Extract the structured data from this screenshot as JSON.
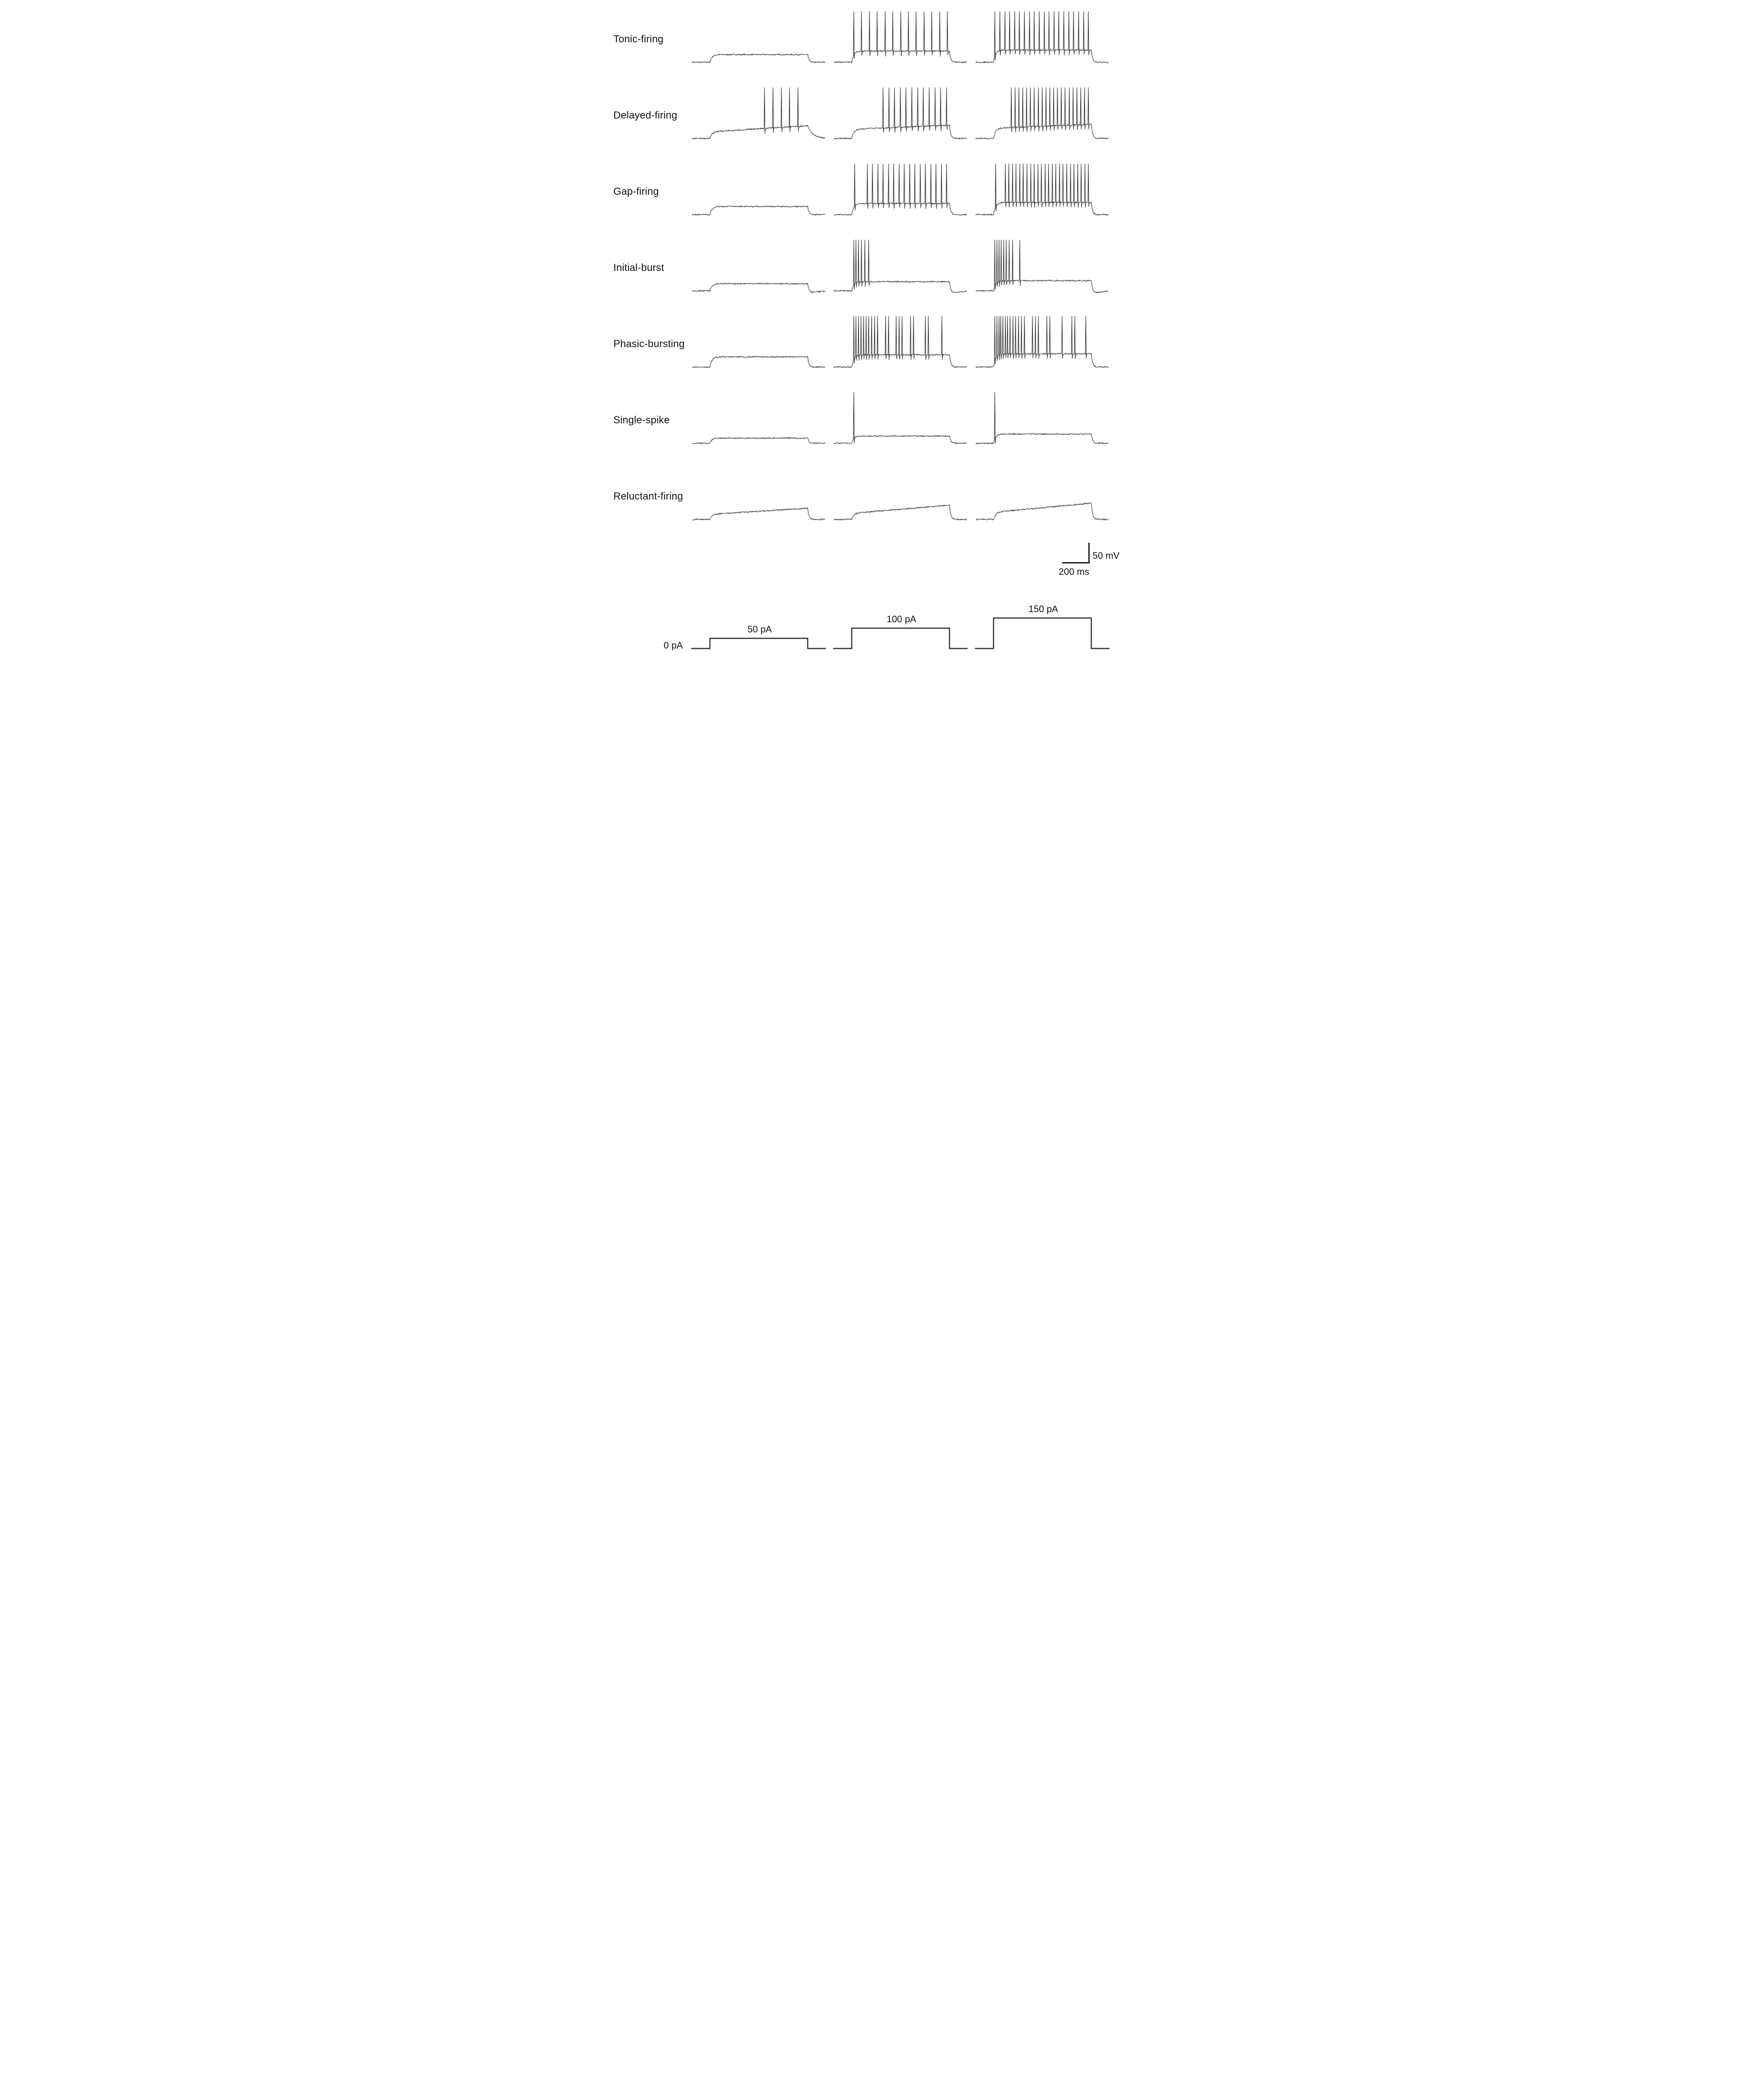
{
  "chart_data": {
    "type": "line",
    "description": "Whole-cell current-clamp voltage traces showing seven neuronal firing patterns in response to three depolarizing current steps",
    "columns": [
      {
        "label": "50 pA",
        "pA": 50
      },
      {
        "label": "100 pA",
        "pA": 100
      },
      {
        "label": "150 pA",
        "pA": 150
      }
    ],
    "baseline": {
      "label": "0 pA",
      "pA": 0
    },
    "scalebar": {
      "voltage_label": "50 mV",
      "time_label": "200 ms",
      "voltage_mV": 50,
      "time_ms": 200
    },
    "step_window": [
      0.15,
      0.85
    ],
    "rows": [
      {
        "label": "Tonic-firing",
        "traces": [
          {
            "plateau": 15,
            "ramp": 0,
            "spikes": []
          },
          {
            "plateau": 22,
            "ramp": 0,
            "spikes": [
              0.02,
              0.1,
              0.18,
              0.26,
              0.34,
              0.42,
              0.5,
              0.58,
              0.66,
              0.74,
              0.82,
              0.9,
              0.98
            ]
          },
          {
            "plateau": 24,
            "ramp": 0,
            "spikes": [
              0.015,
              0.065,
              0.116,
              0.166,
              0.216,
              0.266,
              0.317,
              0.367,
              0.417,
              0.467,
              0.518,
              0.568,
              0.618,
              0.668,
              0.719,
              0.769,
              0.819,
              0.869,
              0.92,
              0.97
            ]
          }
        ]
      },
      {
        "label": "Delayed-firing",
        "traces": [
          {
            "plateau": 13,
            "ramp": 12,
            "tail": 12,
            "spikes": [
              0.56,
              0.645,
              0.73,
              0.815,
              0.9
            ]
          },
          {
            "plateau": 18,
            "ramp": 8,
            "spikes": [
              0.32,
              0.379,
              0.438,
              0.497,
              0.556,
              0.615,
              0.674,
              0.733,
              0.792,
              0.851,
              0.911,
              0.97
            ]
          },
          {
            "plateau": 20,
            "ramp": 8,
            "spikes": [
              0.18,
              0.22,
              0.259,
              0.299,
              0.338,
              0.378,
              0.417,
              0.457,
              0.496,
              0.536,
              0.575,
              0.615,
              0.654,
              0.694,
              0.733,
              0.773,
              0.812,
              0.852,
              0.891,
              0.931,
              0.97
            ]
          }
        ]
      },
      {
        "label": "Gap-firing",
        "traces": [
          {
            "plateau": 16,
            "ramp": 0,
            "spikes": []
          },
          {
            "plateau": 22,
            "ramp": 0,
            "spikes": [
              0.03,
              0.16,
              0.214,
              0.268,
              0.322,
              0.376,
              0.43,
              0.484,
              0.538,
              0.592,
              0.646,
              0.7,
              0.754,
              0.808,
              0.862,
              0.916,
              0.97
            ]
          },
          {
            "plateau": 24,
            "ramp": 0,
            "spikes": [
              0.02,
              0.12,
              0.157,
              0.194,
              0.231,
              0.268,
              0.305,
              0.342,
              0.379,
              0.416,
              0.453,
              0.49,
              0.527,
              0.564,
              0.601,
              0.638,
              0.675,
              0.712,
              0.749,
              0.786,
              0.823,
              0.86,
              0.897,
              0.934,
              0.97
            ]
          }
        ]
      },
      {
        "label": "Initial-burst",
        "traces": [
          {
            "plateau": 14,
            "ramp": 0,
            "undershoot": 5,
            "spikes": []
          },
          {
            "plateau": 18,
            "ramp": 0,
            "undershoot": 6,
            "spikes": [
              0.02,
              0.045,
              0.07,
              0.1,
              0.135,
              0.175
            ]
          },
          {
            "plateau": 20,
            "ramp": 0,
            "undershoot": 6,
            "spikes": [
              0.015,
              0.035,
              0.055,
              0.078,
              0.103,
              0.13,
              0.16,
              0.195,
              0.27
            ]
          }
        ]
      },
      {
        "label": "Phasic-bursting",
        "traces": [
          {
            "plateau": 20,
            "ramp": 0,
            "spikes": []
          },
          {
            "plateau": 24,
            "ramp": 0,
            "spikes": [
              0.02,
              0.045,
              0.07,
              0.095,
              0.12,
              0.147,
              0.175,
              0.205,
              0.235,
              0.265,
              0.345,
              0.375,
              0.455,
              0.485,
              0.515,
              0.6,
              0.63,
              0.755,
              0.785,
              0.92
            ]
          },
          {
            "plateau": 26,
            "ramp": 0,
            "spikes": [
              0.015,
              0.035,
              0.055,
              0.075,
              0.097,
              0.12,
              0.145,
              0.17,
              0.197,
              0.225,
              0.255,
              0.285,
              0.315,
              0.4,
              0.43,
              0.46,
              0.545,
              0.575,
              0.7,
              0.8,
              0.83,
              0.945
            ]
          }
        ]
      },
      {
        "label": "Single-spike",
        "traces": [
          {
            "plateau": 10,
            "ramp": 0,
            "spikes": []
          },
          {
            "plateau": 14,
            "ramp": 0,
            "spikes": [
              0.02
            ]
          },
          {
            "plateau": 18,
            "ramp": 0,
            "spikes": [
              0.015
            ]
          }
        ]
      },
      {
        "label": "Reluctant-firing",
        "traces": [
          {
            "plateau": 10,
            "ramp": 12,
            "spikes": []
          },
          {
            "plateau": 12,
            "ramp": 16,
            "spikes": []
          },
          {
            "plateau": 14,
            "ramp": 18,
            "spikes": []
          }
        ]
      }
    ],
    "stimulus": {
      "amplitudes": [
        50,
        100,
        150
      ],
      "max_pA": 150
    }
  }
}
